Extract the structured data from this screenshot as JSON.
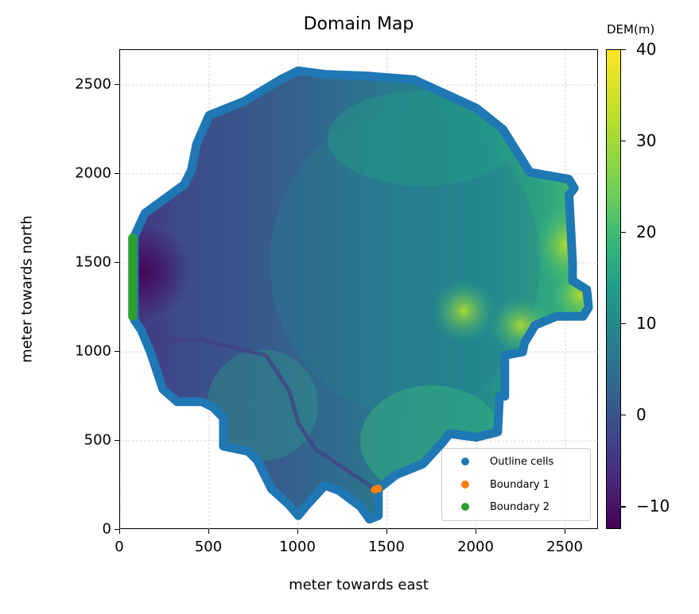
{
  "chart_data": {
    "type": "heatmap",
    "title": "Domain Map",
    "xlabel": "meter towards east",
    "ylabel": "meter towards north",
    "xlim": [
      0,
      2680
    ],
    "ylim": [
      0,
      2690
    ],
    "xticks": [
      0,
      500,
      1000,
      1500,
      2000,
      2500
    ],
    "yticks": [
      0,
      500,
      1000,
      1500,
      2000,
      2500
    ],
    "grid": true,
    "colorbar": {
      "label": "DEM(m)",
      "colormap": "viridis",
      "range": [
        -12.5,
        40
      ],
      "ticks": [
        -10,
        0,
        10,
        20,
        30,
        40
      ],
      "tick_labels": [
        "−10",
        "0",
        "10",
        "20",
        "30",
        "40"
      ]
    },
    "legend": {
      "position": "lower right",
      "entries": [
        {
          "label": "Outline cells",
          "color": "#1f77b4"
        },
        {
          "label": "Boundary 1",
          "color": "#ff7f0e"
        },
        {
          "label": "Boundary 2",
          "color": "#2ca02c"
        }
      ]
    },
    "series": [
      {
        "name": "Outline cells",
        "type": "scatter-outline",
        "points": [
          [
            1000,
            2580
          ],
          [
            1150,
            2560
          ],
          [
            1400,
            2550
          ],
          [
            1650,
            2530
          ],
          [
            2000,
            2370
          ],
          [
            2150,
            2250
          ],
          [
            2300,
            2010
          ],
          [
            2520,
            1970
          ],
          [
            2550,
            1920
          ],
          [
            2520,
            1880
          ],
          [
            2530,
            1700
          ],
          [
            2540,
            1500
          ],
          [
            2540,
            1400
          ],
          [
            2620,
            1350
          ],
          [
            2630,
            1250
          ],
          [
            2600,
            1200
          ],
          [
            2450,
            1200
          ],
          [
            2330,
            1150
          ],
          [
            2270,
            1050
          ],
          [
            2260,
            1000
          ],
          [
            2160,
            980
          ],
          [
            2160,
            750
          ],
          [
            2130,
            750
          ],
          [
            2120,
            550
          ],
          [
            2000,
            520
          ],
          [
            1850,
            540
          ],
          [
            1810,
            490
          ],
          [
            1700,
            370
          ],
          [
            1550,
            310
          ],
          [
            1500,
            270
          ],
          [
            1450,
            230
          ],
          [
            1450,
            80
          ],
          [
            1400,
            60
          ],
          [
            1350,
            130
          ],
          [
            1230,
            220
          ],
          [
            1150,
            250
          ],
          [
            1050,
            140
          ],
          [
            1000,
            80
          ],
          [
            950,
            140
          ],
          [
            850,
            230
          ],
          [
            770,
            390
          ],
          [
            720,
            440
          ],
          [
            580,
            470
          ],
          [
            580,
            630
          ],
          [
            520,
            690
          ],
          [
            460,
            720
          ],
          [
            320,
            720
          ],
          [
            240,
            790
          ],
          [
            170,
            1000
          ],
          [
            120,
            1120
          ],
          [
            80,
            1180
          ],
          [
            80,
            1650
          ],
          [
            140,
            1780
          ],
          [
            360,
            1940
          ],
          [
            400,
            2020
          ],
          [
            430,
            2170
          ],
          [
            500,
            2330
          ],
          [
            700,
            2410
          ],
          [
            900,
            2530
          ]
        ]
      },
      {
        "name": "Boundary 1",
        "type": "scatter",
        "points": [
          [
            1430,
            225
          ],
          [
            1450,
            232
          ]
        ]
      },
      {
        "name": "Boundary 2",
        "type": "scatter",
        "x": 70,
        "y_range": [
          1200,
          1640
        ]
      }
    ],
    "features": {
      "low_region": "west near x=100-250, y=1300-1600 (approx -10 m)",
      "high_region": "east near x=1900-2600, y=1100-1500 (approx 30-38 m)"
    }
  }
}
